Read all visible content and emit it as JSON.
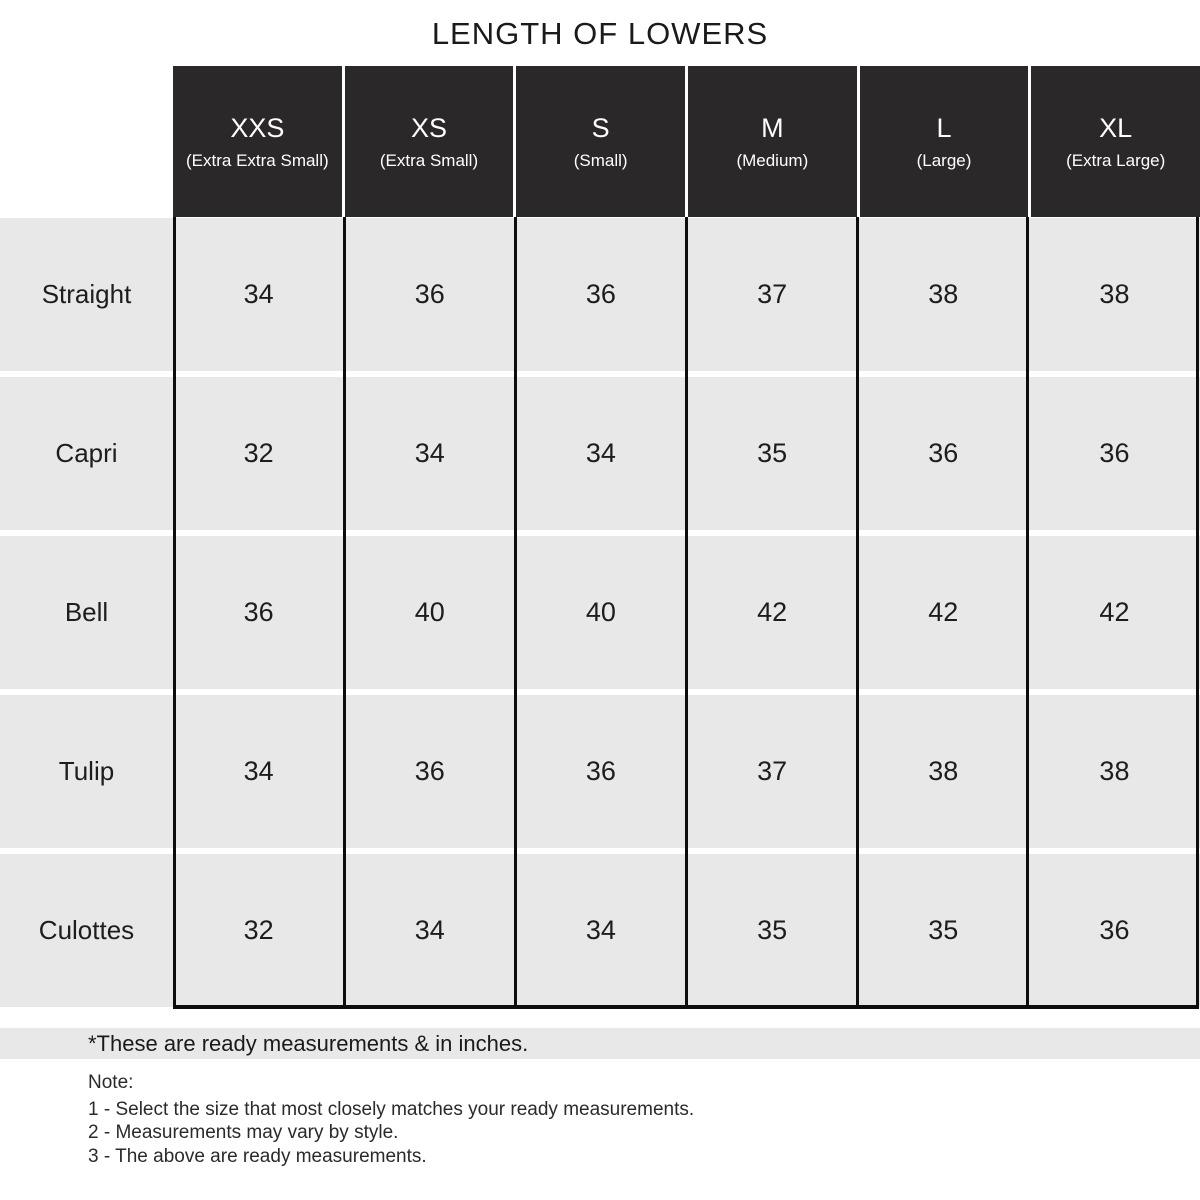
{
  "title": "LENGTH OF LOWERS",
  "table": {
    "columns": [
      {
        "size": "XXS",
        "label": "(Extra Extra Small)"
      },
      {
        "size": "XS",
        "label": "(Extra Small)"
      },
      {
        "size": "S",
        "label": "(Small)"
      },
      {
        "size": "M",
        "label": "(Medium)"
      },
      {
        "size": "L",
        "label": "(Large)"
      },
      {
        "size": "XL",
        "label": "(Extra Large)"
      }
    ],
    "rows": [
      {
        "style": "Straight",
        "values": [
          "34",
          "36",
          "36",
          "37",
          "38",
          "38"
        ]
      },
      {
        "style": "Capri",
        "values": [
          "32",
          "34",
          "34",
          "35",
          "36",
          "36"
        ]
      },
      {
        "style": "Bell",
        "values": [
          "36",
          "40",
          "40",
          "42",
          "42",
          "42"
        ]
      },
      {
        "style": "Tulip",
        "values": [
          "34",
          "36",
          "36",
          "37",
          "38",
          "38"
        ]
      },
      {
        "style": "Culottes",
        "values": [
          "32",
          "34",
          "34",
          "35",
          "35",
          "36"
        ]
      }
    ]
  },
  "footnote": "*These are ready measurements & in inches.",
  "note": {
    "heading": "Note:",
    "items": [
      "1 - Select the size that most closely matches your ready measurements.",
      "2 - Measurements may vary by style.",
      "3 - The above are ready measurements."
    ]
  },
  "colors": {
    "header_bg": "#2b2829",
    "row_bg": "#e9e8e8",
    "border": "#0d0d0d",
    "text": "#1d1d1d"
  }
}
